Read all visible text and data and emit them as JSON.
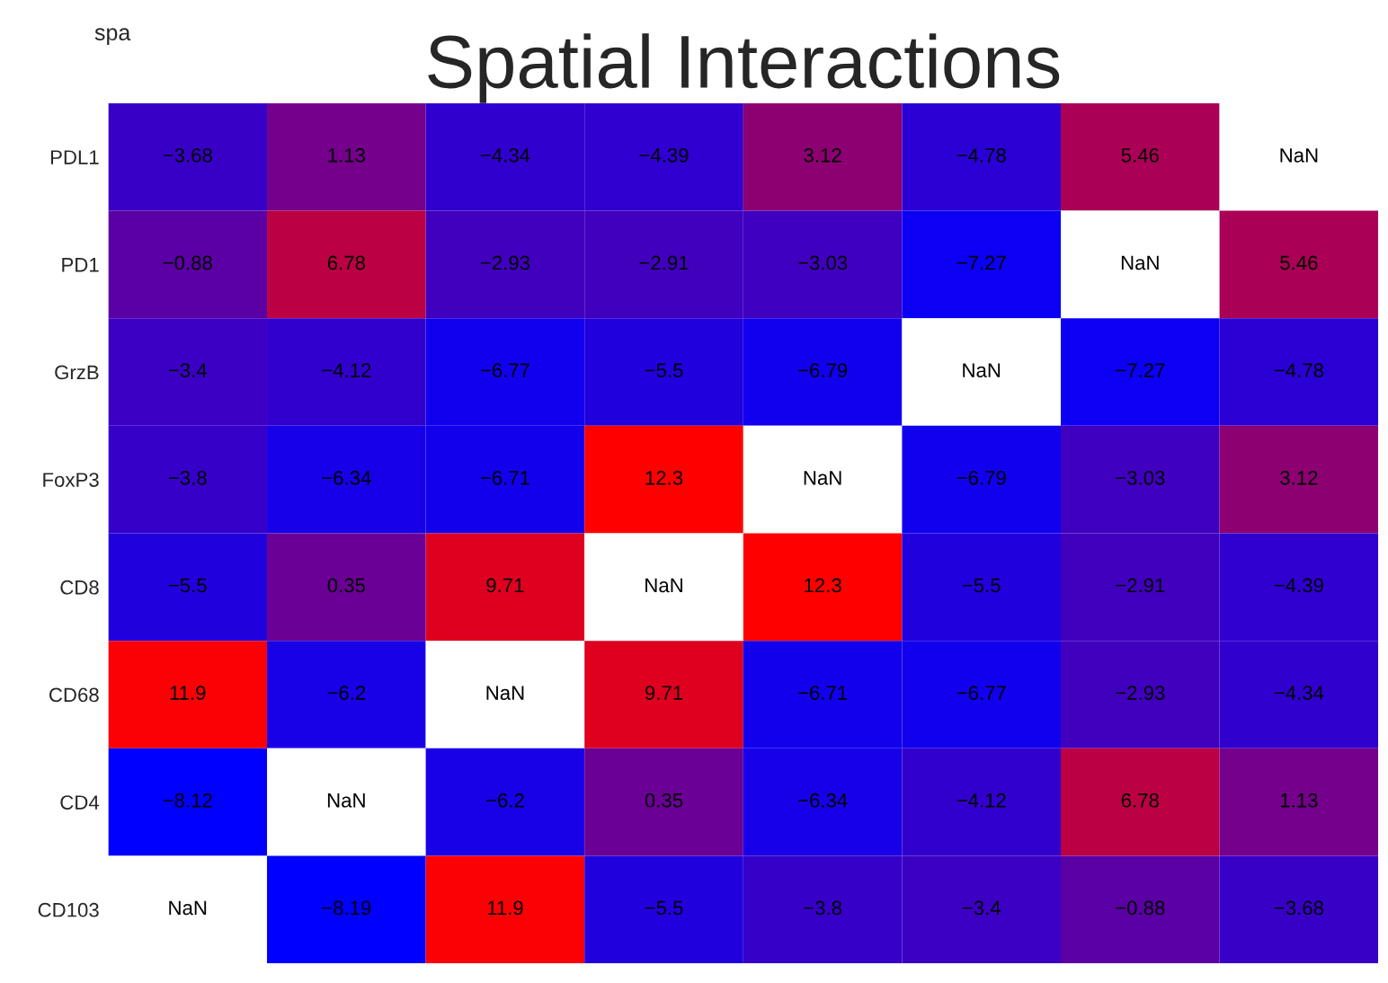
{
  "chart_data": {
    "type": "heatmap",
    "title": "Spatial Interactions",
    "annotations": [
      "spa"
    ],
    "categories": [
      null,
      null,
      null,
      null,
      null,
      null,
      null,
      null
    ],
    "y_categories": [
      "PDL1",
      "PD1",
      "GrzB",
      "FoxP3",
      "CD8",
      "CD68",
      "CD4",
      "CD103"
    ],
    "cells": [
      [
        -3.68,
        1.13,
        -4.34,
        -4.39,
        3.12,
        -4.78,
        5.46,
        null
      ],
      [
        -0.88,
        6.78,
        -2.93,
        -2.91,
        -3.03,
        -7.27,
        null,
        5.46
      ],
      [
        -3.4,
        -4.12,
        -6.77,
        -5.5,
        -6.79,
        null,
        -7.27,
        -4.78
      ],
      [
        -3.8,
        -6.34,
        -6.71,
        12.3,
        null,
        -6.79,
        -3.03,
        3.12
      ],
      [
        -5.5,
        0.35,
        9.71,
        null,
        12.3,
        -5.5,
        -2.91,
        -4.39
      ],
      [
        11.9,
        -6.2,
        null,
        9.71,
        -6.71,
        -6.77,
        -2.93,
        -4.34
      ],
      [
        -8.12,
        null,
        -6.2,
        0.35,
        -6.34,
        -4.12,
        6.78,
        1.13
      ],
      [
        null,
        -8.19,
        11.9,
        -5.5,
        -3.8,
        -3.4,
        -0.88,
        -3.68
      ]
    ],
    "cell_labels": [
      [
        "−3.68",
        "1.13",
        "−4.34",
        "−4.39",
        "3.12",
        "−4.78",
        "5.46",
        "NaN"
      ],
      [
        "−0.88",
        "6.78",
        "−2.93",
        "−2.91",
        "−3.03",
        "−7.27",
        "NaN",
        "5.46"
      ],
      [
        "−3.4",
        "−4.12",
        "−6.77",
        "−5.5",
        "−6.79",
        "NaN",
        "−7.27",
        "−4.78"
      ],
      [
        "−3.8",
        "−6.34",
        "−6.71",
        "12.3",
        "NaN",
        "−6.79",
        "−3.03",
        "3.12"
      ],
      [
        "−5.5",
        "0.35",
        "9.71",
        "NaN",
        "12.3",
        "−5.5",
        "−2.91",
        "−4.39"
      ],
      [
        "11.9",
        "−6.2",
        "NaN",
        "9.71",
        "−6.71",
        "−6.77",
        "−2.93",
        "−4.34"
      ],
      [
        "−8.12",
        "NaN",
        "−6.2",
        "0.35",
        "−6.34",
        "−4.12",
        "6.78",
        "1.13"
      ],
      [
        "NaN",
        "−8.19",
        "11.9",
        "−5.5",
        "−3.8",
        "−3.4",
        "−0.88",
        "−3.68"
      ]
    ]
  }
}
